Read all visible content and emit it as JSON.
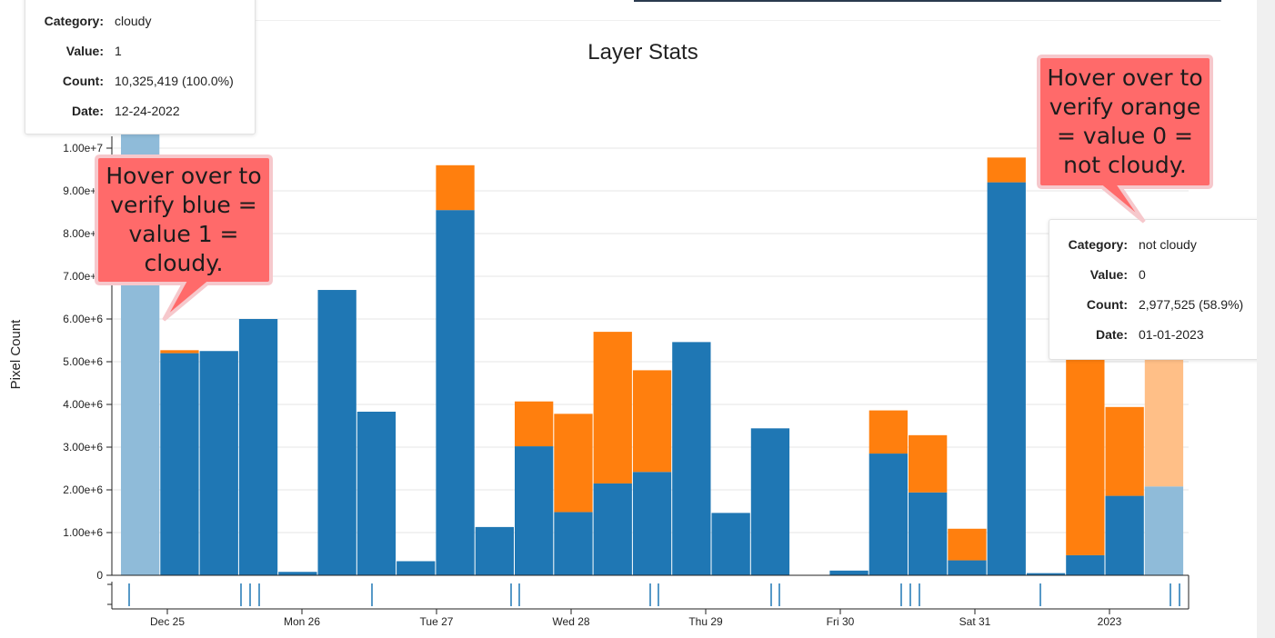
{
  "chart_data": {
    "type": "bar",
    "stacked": true,
    "title": "Layer Stats",
    "ylabel": "Pixel Count",
    "ylim": [
      0,
      10000000
    ],
    "yticks": [
      {
        "value": 0,
        "label": "0"
      },
      {
        "value": 1000000,
        "label": "1.00e+6"
      },
      {
        "value": 2000000,
        "label": "2.00e+6"
      },
      {
        "value": 3000000,
        "label": "3.00e+6"
      },
      {
        "value": 4000000,
        "label": "4.00e+6"
      },
      {
        "value": 5000000,
        "label": "5.00e+6"
      },
      {
        "value": 6000000,
        "label": "6.00e+6"
      },
      {
        "value": 7000000,
        "label": "7.00e+6"
      },
      {
        "value": 8000000,
        "label": "8.00e+6"
      },
      {
        "value": 9000000,
        "label": "9.00e+6"
      },
      {
        "value": 10000000,
        "label": "1.00e+7"
      }
    ],
    "xticks": [
      "Dec 25",
      "Mon 26",
      "Tue 27",
      "Wed 28",
      "Thu 29",
      "Fri 30",
      "Sat 31",
      "2023"
    ],
    "colors": {
      "cloudy": "#1f77b4",
      "not_cloudy": "#ff7f0e",
      "cloudy_faded": "#8fbbd9",
      "not_cloudy_faded": "#ffbf87"
    },
    "bars": [
      {
        "cloudy": 10325419,
        "not_cloudy": 0,
        "faded": true
      },
      {
        "cloudy": 5200000,
        "not_cloudy": 70000
      },
      {
        "cloudy": 5250000,
        "not_cloudy": 0
      },
      {
        "cloudy": 6000000,
        "not_cloudy": 0
      },
      {
        "cloudy": 80000,
        "not_cloudy": 0
      },
      {
        "cloudy": 6680000,
        "not_cloudy": 0
      },
      {
        "cloudy": 3830000,
        "not_cloudy": 0
      },
      {
        "cloudy": 330000,
        "not_cloudy": 0
      },
      {
        "cloudy": 8550000,
        "not_cloudy": 1050000
      },
      {
        "cloudy": 1130000,
        "not_cloudy": 0
      },
      {
        "cloudy": 3020000,
        "not_cloudy": 1050000
      },
      {
        "cloudy": 1480000,
        "not_cloudy": 2300000
      },
      {
        "cloudy": 2150000,
        "not_cloudy": 3550000
      },
      {
        "cloudy": 2420000,
        "not_cloudy": 2380000
      },
      {
        "cloudy": 5460000,
        "not_cloudy": 0
      },
      {
        "cloudy": 1460000,
        "not_cloudy": 0
      },
      {
        "cloudy": 3440000,
        "not_cloudy": 0
      },
      {
        "cloudy": 0,
        "not_cloudy": 0
      },
      {
        "cloudy": 110000,
        "not_cloudy": 0
      },
      {
        "cloudy": 2850000,
        "not_cloudy": 1010000
      },
      {
        "cloudy": 1940000,
        "not_cloudy": 1340000
      },
      {
        "cloudy": 350000,
        "not_cloudy": 740000
      },
      {
        "cloudy": 9200000,
        "not_cloudy": 580000
      },
      {
        "cloudy": 50000,
        "not_cloudy": 0
      },
      {
        "cloudy": 470000,
        "not_cloudy": 4800000
      },
      {
        "cloudy": 1860000,
        "not_cloudy": 2080000
      },
      {
        "cloudy": 2080000,
        "not_cloudy": 2977525,
        "faded": true
      }
    ]
  },
  "tooltip_left": {
    "category_label": "Category:",
    "category": "cloudy",
    "value_label": "Value:",
    "value": "1",
    "count_label": "Count:",
    "count": "10,325,419 (100.0%)",
    "date_label": "Date:",
    "date": "12-24-2022"
  },
  "tooltip_right": {
    "category_label": "Category:",
    "category": "not cloudy",
    "value_label": "Value:",
    "value": "0",
    "count_label": "Count:",
    "count": "2,977,525 (58.9%)",
    "date_label": "Date:",
    "date": "01-01-2023"
  },
  "callout_left": {
    "text": "Hover over to verify blue = value 1 = cloudy."
  },
  "callout_right": {
    "text": "Hover over to verify orange = value 0 = not cloudy."
  }
}
